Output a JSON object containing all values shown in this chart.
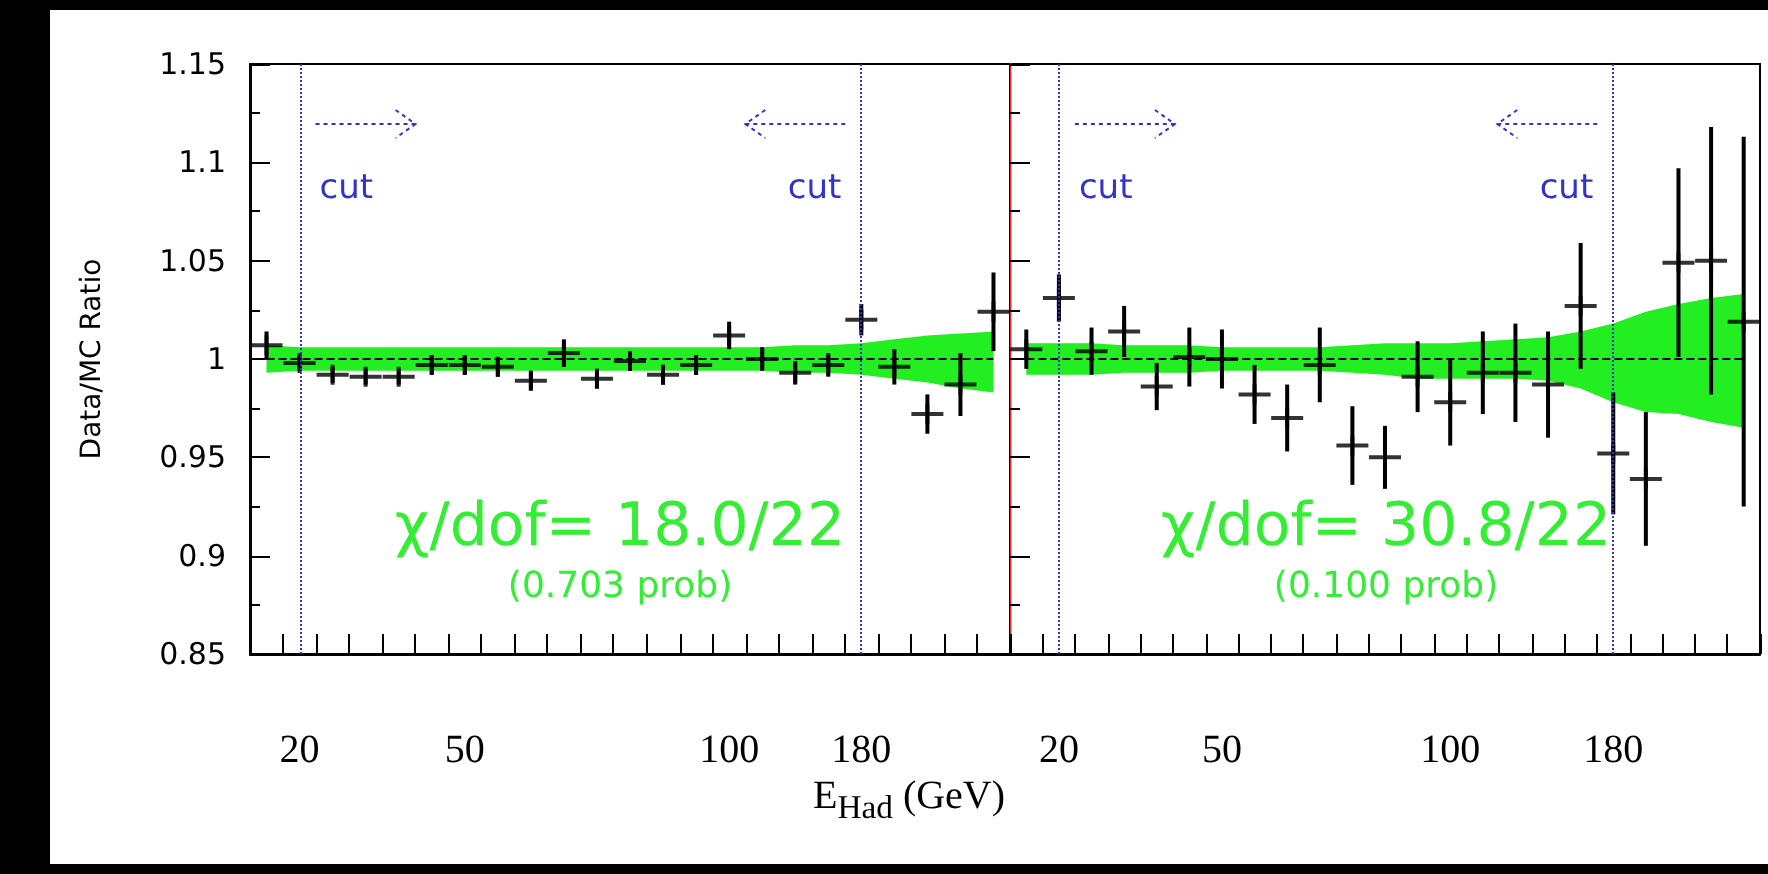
{
  "chart_data": [
    {
      "type": "scatter",
      "ylabel": "Data/MC Ratio",
      "xlabel": "E$_{Had}$ (GeV)",
      "categories": [
        null,
        "20",
        null,
        null,
        null,
        null,
        "50",
        null,
        null,
        null,
        null,
        null,
        null,
        null,
        "100",
        null,
        null,
        null,
        "180",
        null,
        null,
        null,
        null
      ],
      "ylim": [
        0.85,
        1.15
      ],
      "yticks": [
        0.85,
        0.9,
        0.95,
        1,
        1.05,
        1.1,
        1.15
      ],
      "series": [
        {
          "type": "line",
          "color": "#000000",
          "line_style": "dashed",
          "values": [
            1,
            1,
            1,
            1,
            1,
            1,
            1,
            1,
            1,
            1,
            1,
            1,
            1,
            1,
            1,
            1,
            1,
            1,
            1,
            1,
            1,
            1,
            1
          ],
          "lower": [
            0.993,
            0.994,
            0.994,
            0.994,
            0.994,
            0.994,
            0.994,
            0.994,
            0.994,
            0.994,
            0.994,
            0.994,
            0.994,
            0.994,
            0.994,
            0.994,
            0.993,
            0.993,
            0.992,
            0.99,
            0.988,
            0.985,
            0.983
          ],
          "upper": [
            1.007,
            1.006,
            1.006,
            1.006,
            1.006,
            1.006,
            1.006,
            1.006,
            1.006,
            1.006,
            1.006,
            1.006,
            1.006,
            1.006,
            1.006,
            1.006,
            1.007,
            1.007,
            1.008,
            1.01,
            1.012,
            1.013,
            1.014
          ]
        },
        {
          "type": "scatter",
          "color": "#000000",
          "marker": "cross",
          "values": [
            1.007,
            0.998,
            0.992,
            0.991,
            0.991,
            0.997,
            0.997,
            0.996,
            0.989,
            1.003,
            0.99,
            0.999,
            0.992,
            0.997,
            1.012,
            1.0,
            0.993,
            0.997,
            1.02,
            0.996,
            0.972,
            0.987,
            1.024
          ],
          "errors": [
            0.007,
            0.004,
            0.004,
            0.004,
            0.004,
            0.005,
            0.005,
            0.005,
            0.005,
            0.007,
            0.005,
            0.005,
            0.005,
            0.005,
            0.007,
            0.006,
            0.006,
            0.006,
            0.008,
            0.009,
            0.01,
            0.016,
            0.02
          ]
        }
      ],
      "ref_lines": [
        {
          "axis": "x",
          "value": "20",
          "label": "cut",
          "color": "#3333cc",
          "line_style": "dotted"
        },
        {
          "axis": "x",
          "value": "180",
          "label": "cut",
          "color": "#3333cc",
          "line_style": "dotted"
        }
      ],
      "annotations": [
        "χ/dof= 18.0/22",
        "(0.703 prob)"
      ]
    },
    {
      "type": "scatter",
      "tick_labels": "x",
      "categories": [
        null,
        "20",
        null,
        null,
        null,
        null,
        "50",
        null,
        null,
        null,
        null,
        null,
        null,
        "100",
        null,
        null,
        null,
        null,
        "180",
        null,
        null,
        null,
        null
      ],
      "ylim": [
        0.85,
        1.15
      ],
      "yticks": [
        0.85,
        0.9,
        0.95,
        1,
        1.05,
        1.1,
        1.15
      ],
      "series": [
        {
          "type": "line",
          "color": "#000000",
          "line_style": "dashed",
          "values": [
            1,
            1,
            1,
            1,
            1,
            1,
            1,
            1,
            1,
            1,
            1,
            1,
            1,
            1,
            1,
            1,
            1,
            1,
            1,
            1,
            1,
            1,
            1
          ],
          "lower": [
            0.992,
            0.992,
            0.992,
            0.993,
            0.993,
            0.993,
            0.994,
            0.994,
            0.994,
            0.994,
            0.993,
            0.992,
            0.99,
            0.99,
            0.99,
            0.99,
            0.989,
            0.985,
            0.978,
            0.973,
            0.972,
            0.968,
            0.965
          ],
          "upper": [
            1.008,
            1.008,
            1.008,
            1.007,
            1.007,
            1.007,
            1.006,
            1.006,
            1.006,
            1.006,
            1.007,
            1.008,
            1.008,
            1.008,
            1.009,
            1.01,
            1.011,
            1.014,
            1.018,
            1.024,
            1.028,
            1.031,
            1.033
          ]
        },
        {
          "type": "scatter",
          "color": "#000000",
          "marker": "cross",
          "values": [
            1.005,
            1.031,
            1.004,
            1.014,
            0.986,
            1.001,
            1.0,
            0.982,
            0.97,
            0.997,
            0.956,
            0.95,
            0.991,
            0.978,
            0.993,
            0.993,
            0.987,
            1.027,
            0.952,
            0.939,
            1.049,
            1.05,
            1.019
          ],
          "errors": [
            0.01,
            0.012,
            0.012,
            0.013,
            0.012,
            0.015,
            0.015,
            0.015,
            0.017,
            0.019,
            0.02,
            0.016,
            0.018,
            0.022,
            0.021,
            0.025,
            0.027,
            0.032,
            0.031,
            0.034,
            0.048,
            0.068,
            0.094
          ]
        }
      ],
      "ref_lines": [
        {
          "axis": "x",
          "value": "20",
          "label": "cut",
          "color": "#3333cc",
          "line_style": "dotted"
        },
        {
          "axis": "x",
          "value": "180",
          "label": "cut",
          "color": "#3333cc",
          "line_style": "dotted"
        }
      ],
      "annotations": [
        "χ/dof= 30.8/22",
        "(0.100 prob)"
      ]
    }
  ]
}
